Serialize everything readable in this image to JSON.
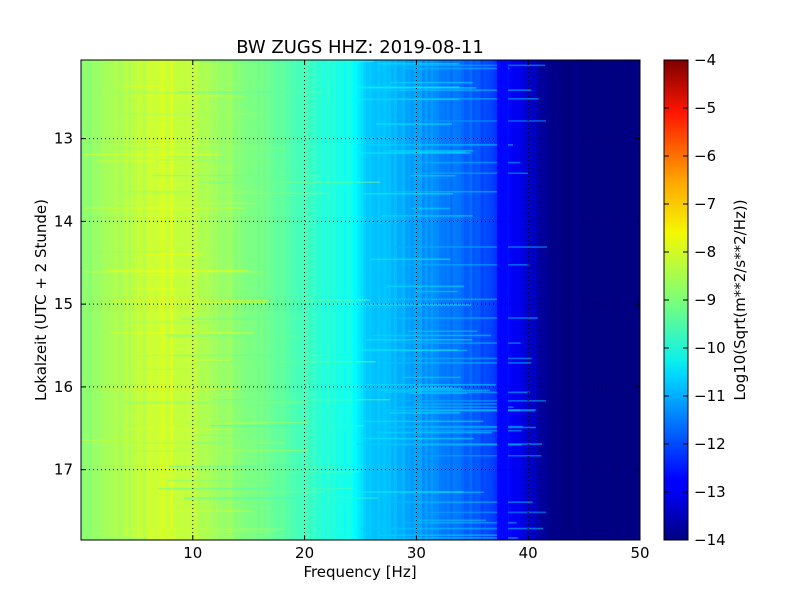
{
  "chart_data": {
    "type": "heatmap",
    "title": "BW ZUGS HHZ: 2019-08-11",
    "xlabel": "Frequency [Hz]",
    "ylabel": "Lokalzeit (UTC + 2 Stunde)",
    "xlim": [
      0,
      50
    ],
    "ylim": [
      12.05,
      17.85
    ],
    "y_inverted": true,
    "x_ticks": [
      10,
      20,
      30,
      40,
      50
    ],
    "y_ticks": [
      13,
      14,
      15,
      16,
      17
    ],
    "grid": true,
    "colorbar": {
      "label": "Log10(Sqrt(m**2/s**2/Hz))",
      "range": [
        -14,
        -4
      ],
      "ticks": [
        -4,
        -5,
        -6,
        -7,
        -8,
        -9,
        -10,
        -11,
        -12,
        -13,
        -14
      ],
      "colormap": "jet"
    },
    "frequency_profile": {
      "frequency_hz": [
        0,
        5,
        8,
        10,
        15,
        20,
        24,
        25,
        30,
        35,
        37,
        38,
        40,
        41,
        42,
        50
      ],
      "value": [
        -8.9,
        -8.4,
        -8.2,
        -8.4,
        -9.0,
        -9.6,
        -10.1,
        -10.6,
        -11.2,
        -11.8,
        -12.3,
        -12.6,
        -13.2,
        -13.6,
        -14.0,
        -14.0
      ]
    },
    "features": [
      {
        "type": "vertical_line",
        "frequency_hz": 24.5,
        "value": -10.3
      },
      {
        "type": "vertical_band",
        "frequency_range_hz": [
          37.2,
          38.2
        ],
        "value": -12.7
      }
    ]
  }
}
